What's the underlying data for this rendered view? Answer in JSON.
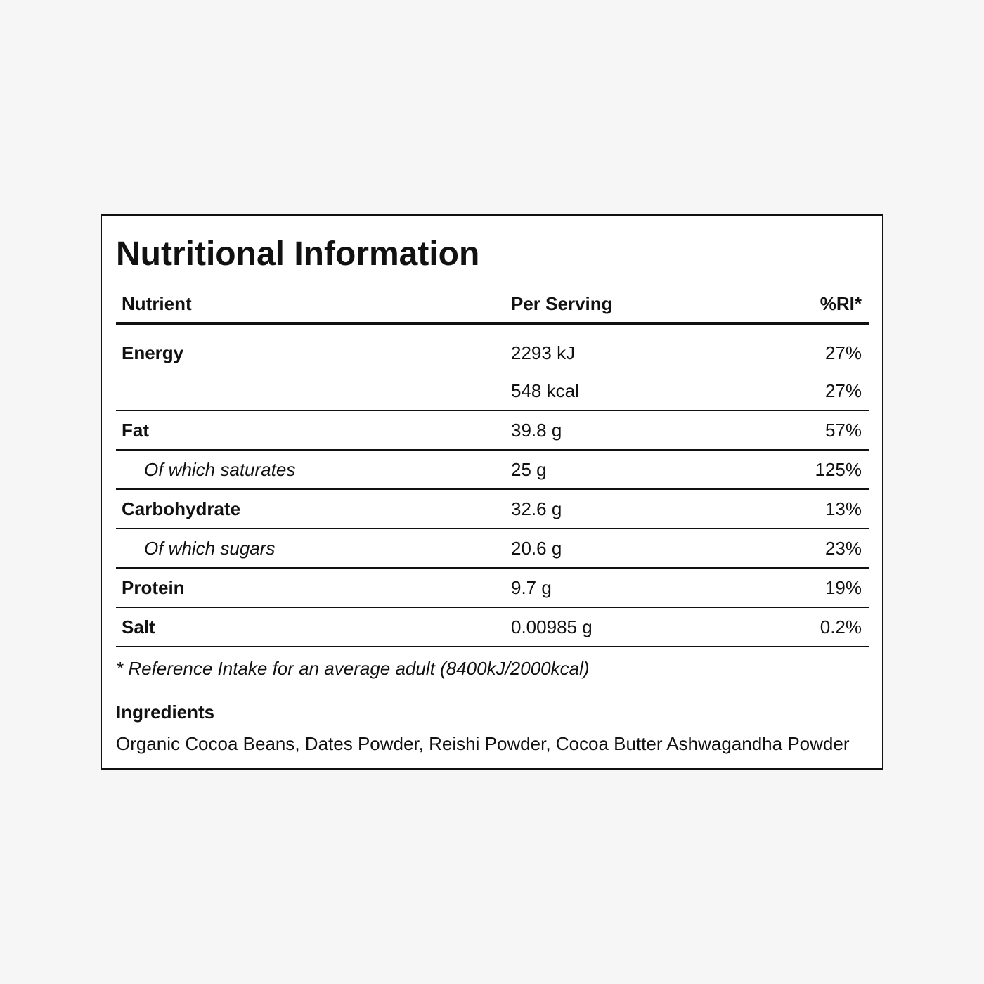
{
  "title": "Nutritional Information",
  "table": {
    "header": [
      "Nutrient",
      "Per Serving",
      "%RI*"
    ],
    "rows": [
      {
        "nutrient": "Energy",
        "lines": [
          [
            "2293 kJ",
            "27%"
          ],
          [
            "548 kcal",
            "27%"
          ]
        ]
      },
      {
        "nutrient": "Fat",
        "lines": [
          [
            "39.8 g",
            "57%"
          ]
        ]
      },
      {
        "nutrient": "Of which saturates",
        "sub": true,
        "lines": [
          [
            "25 g",
            "125%"
          ]
        ]
      },
      {
        "nutrient": "Carbohydrate",
        "lines": [
          [
            "32.6 g",
            "13%"
          ]
        ]
      },
      {
        "nutrient": "Of which sugars",
        "sub": true,
        "lines": [
          [
            "20.6 g",
            "23%"
          ]
        ]
      },
      {
        "nutrient": "Protein",
        "lines": [
          [
            "9.7 g",
            "19%"
          ]
        ]
      },
      {
        "nutrient": "Salt",
        "lines": [
          [
            "0.00985 g",
            "0.2%"
          ]
        ]
      }
    ]
  },
  "footnote": "* Reference Intake for an average adult (8400kJ/2000kcal)",
  "ingredients": {
    "heading": "Ingredients",
    "text": "Organic Cocoa Beans, Dates Powder, Reishi Powder, Cocoa Butter Ashwagandha Powder"
  }
}
